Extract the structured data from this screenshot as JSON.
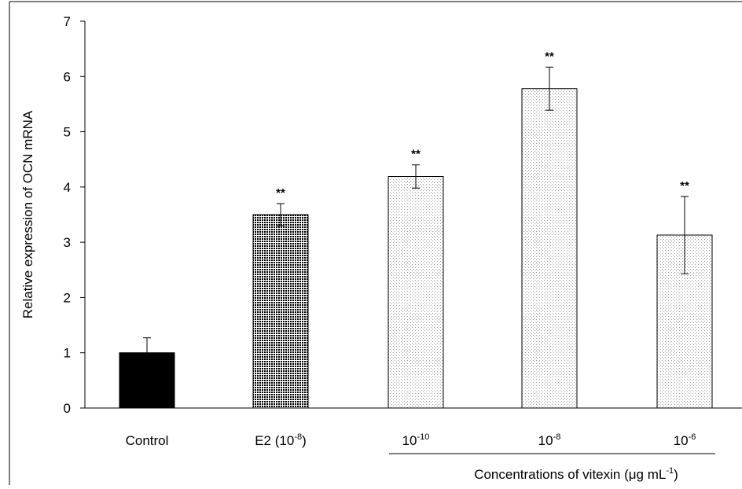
{
  "chart_data": {
    "type": "bar",
    "title": "",
    "ylabel": "Relative expression of OCN mRNA",
    "xlabel": "Concentrations of vitexin (μg mL",
    "xlabel_sup": "-1",
    "xlabel_close": ")",
    "ylim": [
      0,
      7
    ],
    "yticks": [
      "0",
      "1",
      "2",
      "3",
      "4",
      "5",
      "6",
      "7"
    ],
    "grid": false,
    "categories": [
      {
        "base": "Control",
        "sup": "",
        "tail": ""
      },
      {
        "base": "E2 (10",
        "sup": "-8",
        "tail": ")"
      },
      {
        "base": "10",
        "sup": "-10",
        "tail": ""
      },
      {
        "base": "10",
        "sup": "-8",
        "tail": ""
      },
      {
        "base": "10",
        "sup": "-6",
        "tail": ""
      }
    ],
    "values": [
      1.0,
      3.5,
      4.19,
      5.78,
      3.13
    ],
    "errors": [
      0.27,
      0.2,
      0.21,
      0.39,
      0.7
    ],
    "significance": [
      "",
      "**",
      "**",
      "**",
      "**"
    ],
    "bar_fills": [
      "solid-black",
      "dense-dots",
      "light-dots",
      "light-dots",
      "light-dots"
    ],
    "colors": {
      "solid": "#000000",
      "dots": "#000000",
      "background": "#ffffff"
    }
  }
}
